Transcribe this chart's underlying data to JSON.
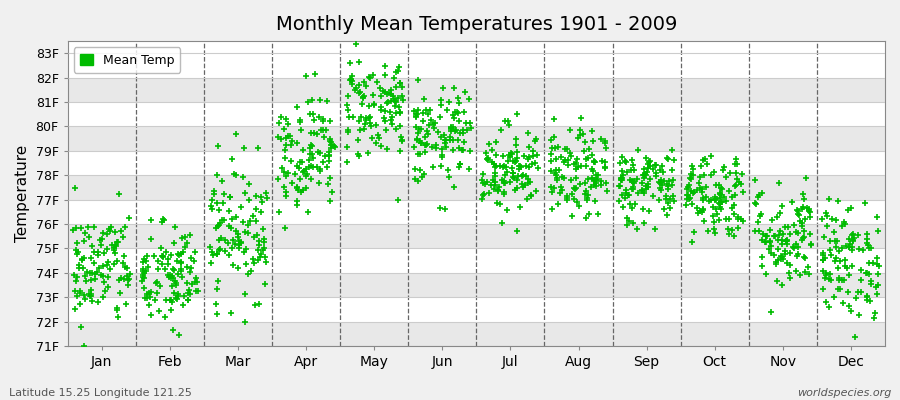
{
  "title": "Monthly Mean Temperatures 1901 - 2009",
  "ylabel": "Temperature",
  "xlabel": "",
  "footnote_left": "Latitude 15.25 Longitude 121.25",
  "footnote_right": "worldspecies.org",
  "legend_label": "Mean Temp",
  "dot_color": "#00bb00",
  "dot_size": 15,
  "background_color": "#f0f0f0",
  "plot_bg_color": "#ffffff",
  "band_color": "#e8e8e8",
  "grid_color": "#cccccc",
  "ylim": [
    71.0,
    83.5
  ],
  "yticks": [
    71,
    72,
    73,
    74,
    75,
    76,
    77,
    78,
    79,
    80,
    81,
    82,
    83
  ],
  "ytick_labels": [
    "71F",
    "72F",
    "73F",
    "74F",
    "75F",
    "76F",
    "77F",
    "78F",
    "79F",
    "80F",
    "81F",
    "82F",
    "83F"
  ],
  "months": [
    "Jan",
    "Feb",
    "Mar",
    "Apr",
    "May",
    "Jun",
    "Jul",
    "Aug",
    "Sep",
    "Oct",
    "Nov",
    "Dec"
  ],
  "n_years": 109,
  "seed": 42,
  "monthly_means": [
    74.2,
    73.8,
    75.8,
    79.0,
    80.8,
    79.5,
    78.3,
    78.0,
    77.6,
    77.2,
    75.5,
    74.5
  ],
  "monthly_stds": [
    1.2,
    1.1,
    1.4,
    1.2,
    1.1,
    1.0,
    0.9,
    0.9,
    0.8,
    0.9,
    1.1,
    1.2
  ]
}
